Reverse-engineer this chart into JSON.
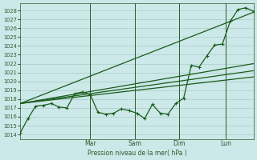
{
  "bg_color": "#cce8e8",
  "grid_color": "#aacccc",
  "line_color": "#1a5c1a",
  "ylabel": "Pression niveau de la mer( hPa )",
  "ylim": [
    1013.5,
    1028.8
  ],
  "yticks": [
    1014,
    1015,
    1016,
    1017,
    1018,
    1019,
    1020,
    1021,
    1022,
    1023,
    1024,
    1025,
    1026,
    1027,
    1028
  ],
  "xlim": [
    0.0,
    1.0
  ],
  "xtick_positions": [
    0.3,
    0.49,
    0.68,
    0.88
  ],
  "xtick_labels": [
    "Mar",
    "Sam",
    "Dim",
    "Lun"
  ],
  "vlines": [
    0.3,
    0.49,
    0.68,
    0.88
  ],
  "main_series_x": [
    0.0,
    0.033,
    0.066,
    0.1,
    0.133,
    0.166,
    0.2,
    0.233,
    0.266,
    0.3,
    0.333,
    0.366,
    0.4,
    0.433,
    0.466,
    0.5,
    0.533,
    0.566,
    0.6,
    0.633,
    0.666,
    0.7,
    0.733,
    0.766,
    0.8,
    0.833,
    0.866,
    0.9,
    0.933,
    0.966,
    1.0
  ],
  "main_series_y": [
    1014.2,
    1015.8,
    1017.2,
    1017.3,
    1017.5,
    1017.1,
    1017.0,
    1018.6,
    1018.8,
    1018.5,
    1016.5,
    1016.3,
    1016.4,
    1016.9,
    1016.7,
    1016.4,
    1015.8,
    1017.4,
    1016.4,
    1016.3,
    1017.5,
    1018.1,
    1021.8,
    1021.6,
    1022.9,
    1024.1,
    1024.2,
    1026.8,
    1028.1,
    1028.3,
    1027.9
  ],
  "trend_lines": [
    {
      "x": [
        0.0,
        1.0
      ],
      "y": [
        1017.5,
        1027.8
      ]
    },
    {
      "x": [
        0.0,
        1.0
      ],
      "y": [
        1017.5,
        1022.0
      ]
    },
    {
      "x": [
        0.0,
        1.0
      ],
      "y": [
        1017.5,
        1020.5
      ]
    },
    {
      "x": [
        0.0,
        1.0
      ],
      "y": [
        1017.5,
        1021.2
      ]
    }
  ]
}
